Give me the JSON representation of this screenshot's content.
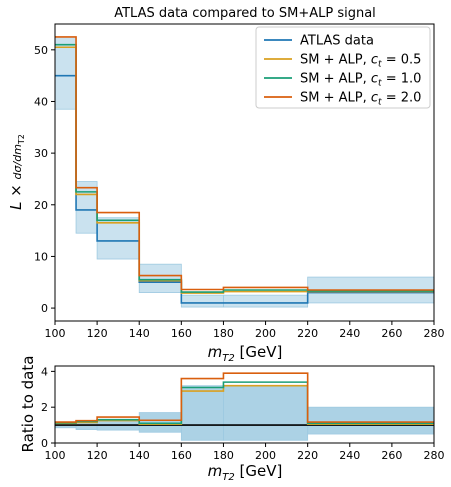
{
  "chart_data": [
    {
      "type": "step",
      "title": "ATLAS data compared to SM+ALP signal",
      "xlabel": "m_T2 [GeV]",
      "ylabel": "L × dσ/dm_T2",
      "xlim": [
        100,
        280
      ],
      "ylim": [
        -2.5,
        55
      ],
      "xticks": [
        100,
        120,
        140,
        160,
        180,
        200,
        220,
        240,
        260,
        280
      ],
      "yticks": [
        0,
        10,
        20,
        30,
        40,
        50
      ],
      "bin_edges": [
        100,
        110,
        120,
        140,
        160,
        180,
        220,
        280
      ],
      "legend": "upper-right",
      "series": [
        {
          "name": "ATLAS data",
          "color": "#1f77b4",
          "values": [
            45,
            19,
            13,
            5,
            1,
            1,
            3
          ],
          "band_low": [
            38.5,
            14.5,
            9.5,
            3,
            0.2,
            0.2,
            1
          ],
          "band_high": [
            52.5,
            24.5,
            17.5,
            8.5,
            2.5,
            2.5,
            6
          ],
          "band_color": "#9ecae1"
        },
        {
          "name": "SM + ALP, c_t = 0.5",
          "color": "#d9a021",
          "values": [
            50.5,
            22,
            16.5,
            5.3,
            2.9,
            3.2,
            3.2
          ]
        },
        {
          "name": "SM + ALP, c_t = 1.0",
          "color": "#1a9e77",
          "values": [
            51,
            22.5,
            17,
            5.5,
            3.1,
            3.5,
            3.3
          ]
        },
        {
          "name": "SM + ALP, c_t = 2.0",
          "color": "#d95f0e",
          "values": [
            52.5,
            23.3,
            18.5,
            6.3,
            3.6,
            4.0,
            3.5
          ]
        }
      ]
    },
    {
      "type": "step",
      "xlabel": "m_T2 [GeV]",
      "ylabel": "Ratio to data",
      "xlim": [
        100,
        280
      ],
      "ylim": [
        0,
        4.3
      ],
      "xticks": [
        100,
        120,
        140,
        160,
        180,
        200,
        220,
        240,
        260,
        280
      ],
      "yticks": [
        0,
        2,
        4
      ],
      "reference_line": 1.0,
      "bin_edges": [
        100,
        110,
        120,
        140,
        160,
        180,
        220,
        280
      ],
      "band_low": [
        0.85,
        0.75,
        0.72,
        0.6,
        0.15,
        0.15,
        0.5
      ],
      "band_high": [
        1.15,
        1.25,
        1.3,
        1.7,
        3.2,
        3.2,
        2.0
      ],
      "band_color": "#9ecae1",
      "series": [
        {
          "name": "SM + ALP, c_t = 0.5",
          "color": "#d9a021",
          "values": [
            1.1,
            1.15,
            1.25,
            1.05,
            2.9,
            3.2,
            1.05
          ]
        },
        {
          "name": "SM + ALP, c_t = 1.0",
          "color": "#1a9e77",
          "values": [
            1.13,
            1.2,
            1.3,
            1.1,
            3.1,
            3.4,
            1.1
          ]
        },
        {
          "name": "SM + ALP, c_t = 2.0",
          "color": "#d95f0e",
          "values": [
            1.17,
            1.25,
            1.45,
            1.27,
            3.6,
            3.9,
            1.17
          ]
        }
      ]
    }
  ]
}
